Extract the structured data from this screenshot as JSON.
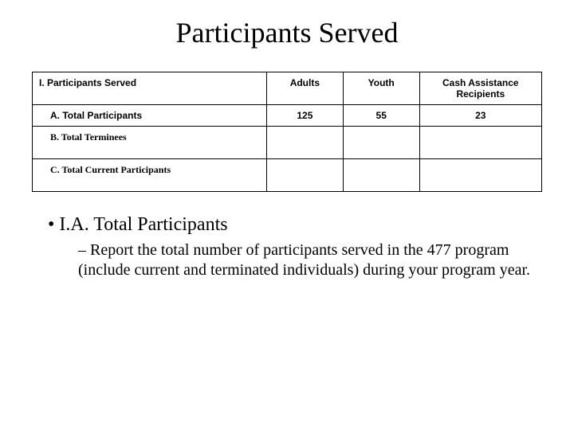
{
  "title": "Participants Served",
  "table": {
    "section_header": "I.  Participants Served",
    "columns": [
      "Adults",
      "Youth",
      "Cash Assistance Recipients"
    ],
    "rows": [
      {
        "label": "A. Total Participants",
        "font": "sans",
        "values": [
          "125",
          "55",
          "23"
        ]
      },
      {
        "label": "B. Total Terminees",
        "font": "serif",
        "values": [
          "",
          "",
          ""
        ]
      },
      {
        "label": "C. Total Current Participants",
        "font": "serif",
        "values": [
          "",
          "",
          ""
        ]
      }
    ],
    "column_widths_pct": [
      46,
      15,
      15,
      24
    ],
    "border_color": "#000000",
    "header_fontsize_pt": 12,
    "cell_fontsize_pt": 12
  },
  "bullets": {
    "level1_prefix": "• ",
    "level1_text": "I.A. Total Participants",
    "level2_prefix": "– ",
    "level2_text": "Report the total number of participants served in the 477 program (include current and terminated individuals) during your program year."
  },
  "colors": {
    "background": "#ffffff",
    "text": "#000000"
  },
  "fonts": {
    "title_family": "Times New Roman",
    "title_size_pt": 36,
    "body_family": "Times New Roman",
    "table_header_family": "Arial"
  }
}
